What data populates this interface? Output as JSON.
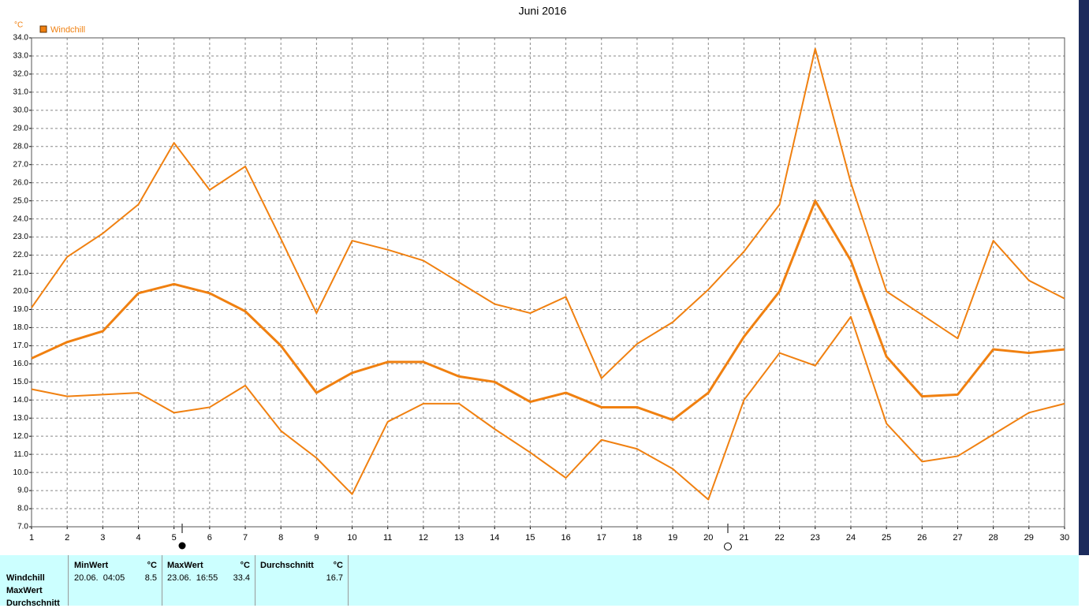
{
  "chart_data": {
    "type": "line",
    "title": "Juni 2016",
    "y_unit": "°C",
    "legend": "Windchill",
    "legend_color": "#f08010",
    "x": [
      1,
      2,
      3,
      4,
      5,
      6,
      7,
      8,
      9,
      10,
      11,
      12,
      13,
      14,
      15,
      16,
      17,
      18,
      19,
      20,
      21,
      22,
      23,
      24,
      25,
      26,
      27,
      28,
      29,
      30
    ],
    "xlim": [
      1,
      30
    ],
    "xticks": [
      1,
      2,
      3,
      4,
      5,
      6,
      7,
      8,
      9,
      10,
      11,
      12,
      13,
      14,
      15,
      16,
      17,
      18,
      19,
      20,
      21,
      22,
      23,
      24,
      25,
      26,
      27,
      28,
      29,
      30
    ],
    "ylim": [
      7,
      34
    ],
    "yticks": [
      {
        "value": 7,
        "label": "7.0"
      },
      {
        "value": 8,
        "label": "8.0"
      },
      {
        "value": 9,
        "label": "9.0"
      },
      {
        "value": 10,
        "label": "10.0"
      },
      {
        "value": 11,
        "label": "11.0"
      },
      {
        "value": 12,
        "label": "12.0"
      },
      {
        "value": 13,
        "label": "13.0"
      },
      {
        "value": 14,
        "label": "14.0"
      },
      {
        "value": 15,
        "label": "15.0"
      },
      {
        "value": 16,
        "label": "16.0"
      },
      {
        "value": 17,
        "label": "17.0"
      },
      {
        "value": 18,
        "label": "18.0"
      },
      {
        "value": 19,
        "label": "19.0"
      },
      {
        "value": 20,
        "label": "20.0"
      },
      {
        "value": 21,
        "label": "21.0"
      },
      {
        "value": 22,
        "label": "22.0"
      },
      {
        "value": 23,
        "label": "23.0"
      },
      {
        "value": 24,
        "label": "24.0"
      },
      {
        "value": 25,
        "label": "25.0"
      },
      {
        "value": 26,
        "label": "26.0"
      },
      {
        "value": 27,
        "label": "27.0"
      },
      {
        "value": 28,
        "label": "28.0"
      },
      {
        "value": 29,
        "label": "29.0"
      },
      {
        "value": 30,
        "label": "30.0"
      },
      {
        "value": 31,
        "label": "31.0"
      },
      {
        "value": 32,
        "label": "32.0"
      },
      {
        "value": 33,
        "label": "33.0"
      },
      {
        "value": 34,
        "label": "34.0"
      }
    ],
    "grid": true,
    "series": [
      {
        "color": "#f08010",
        "line_width": 2,
        "values": [
          19.1,
          21.9,
          23.2,
          24.8,
          28.2,
          25.6,
          26.9,
          22.9,
          18.8,
          22.8,
          22.3,
          21.7,
          20.5,
          19.3,
          18.8,
          19.7,
          15.2,
          17.1,
          18.3,
          20.1,
          22.2,
          24.8,
          33.4,
          26.0,
          20.0,
          18.7,
          17.4,
          22.8,
          20.6,
          19.6
        ]
      },
      {
        "color": "#f08010",
        "line_width": 3,
        "values": [
          16.3,
          17.2,
          17.8,
          19.9,
          20.4,
          19.9,
          18.9,
          17.0,
          14.4,
          15.5,
          16.1,
          16.1,
          15.3,
          15.0,
          13.9,
          14.4,
          13.6,
          13.6,
          12.9,
          14.4,
          17.5,
          20.0,
          25.0,
          21.7,
          16.4,
          14.2,
          14.3,
          16.8,
          16.6,
          16.8
        ]
      },
      {
        "color": "#f08010",
        "line_width": 2,
        "values": [
          14.6,
          14.2,
          14.3,
          14.4,
          13.3,
          13.6,
          14.8,
          12.3,
          10.8,
          8.8,
          12.8,
          13.8,
          13.8,
          12.4,
          11.1,
          9.7,
          11.8,
          11.3,
          10.2,
          8.5,
          14.0,
          16.6,
          15.9,
          18.6,
          12.7,
          10.6,
          10.9,
          12.1,
          13.3,
          13.8
        ]
      }
    ]
  },
  "stats": {
    "row_labels": [
      "Windchill",
      "MaxWert",
      "Durchschnitt"
    ],
    "columns": [
      {
        "header": "MinWert",
        "unit": "°C",
        "time": "20.06.  04:05",
        "value": 8.5
      },
      {
        "header": "MaxWert",
        "unit": "°C",
        "time": "23.06.  16:55",
        "value": 33.4
      },
      {
        "header": "Durchschnitt",
        "unit": "°C",
        "value": 16.7
      }
    ]
  }
}
